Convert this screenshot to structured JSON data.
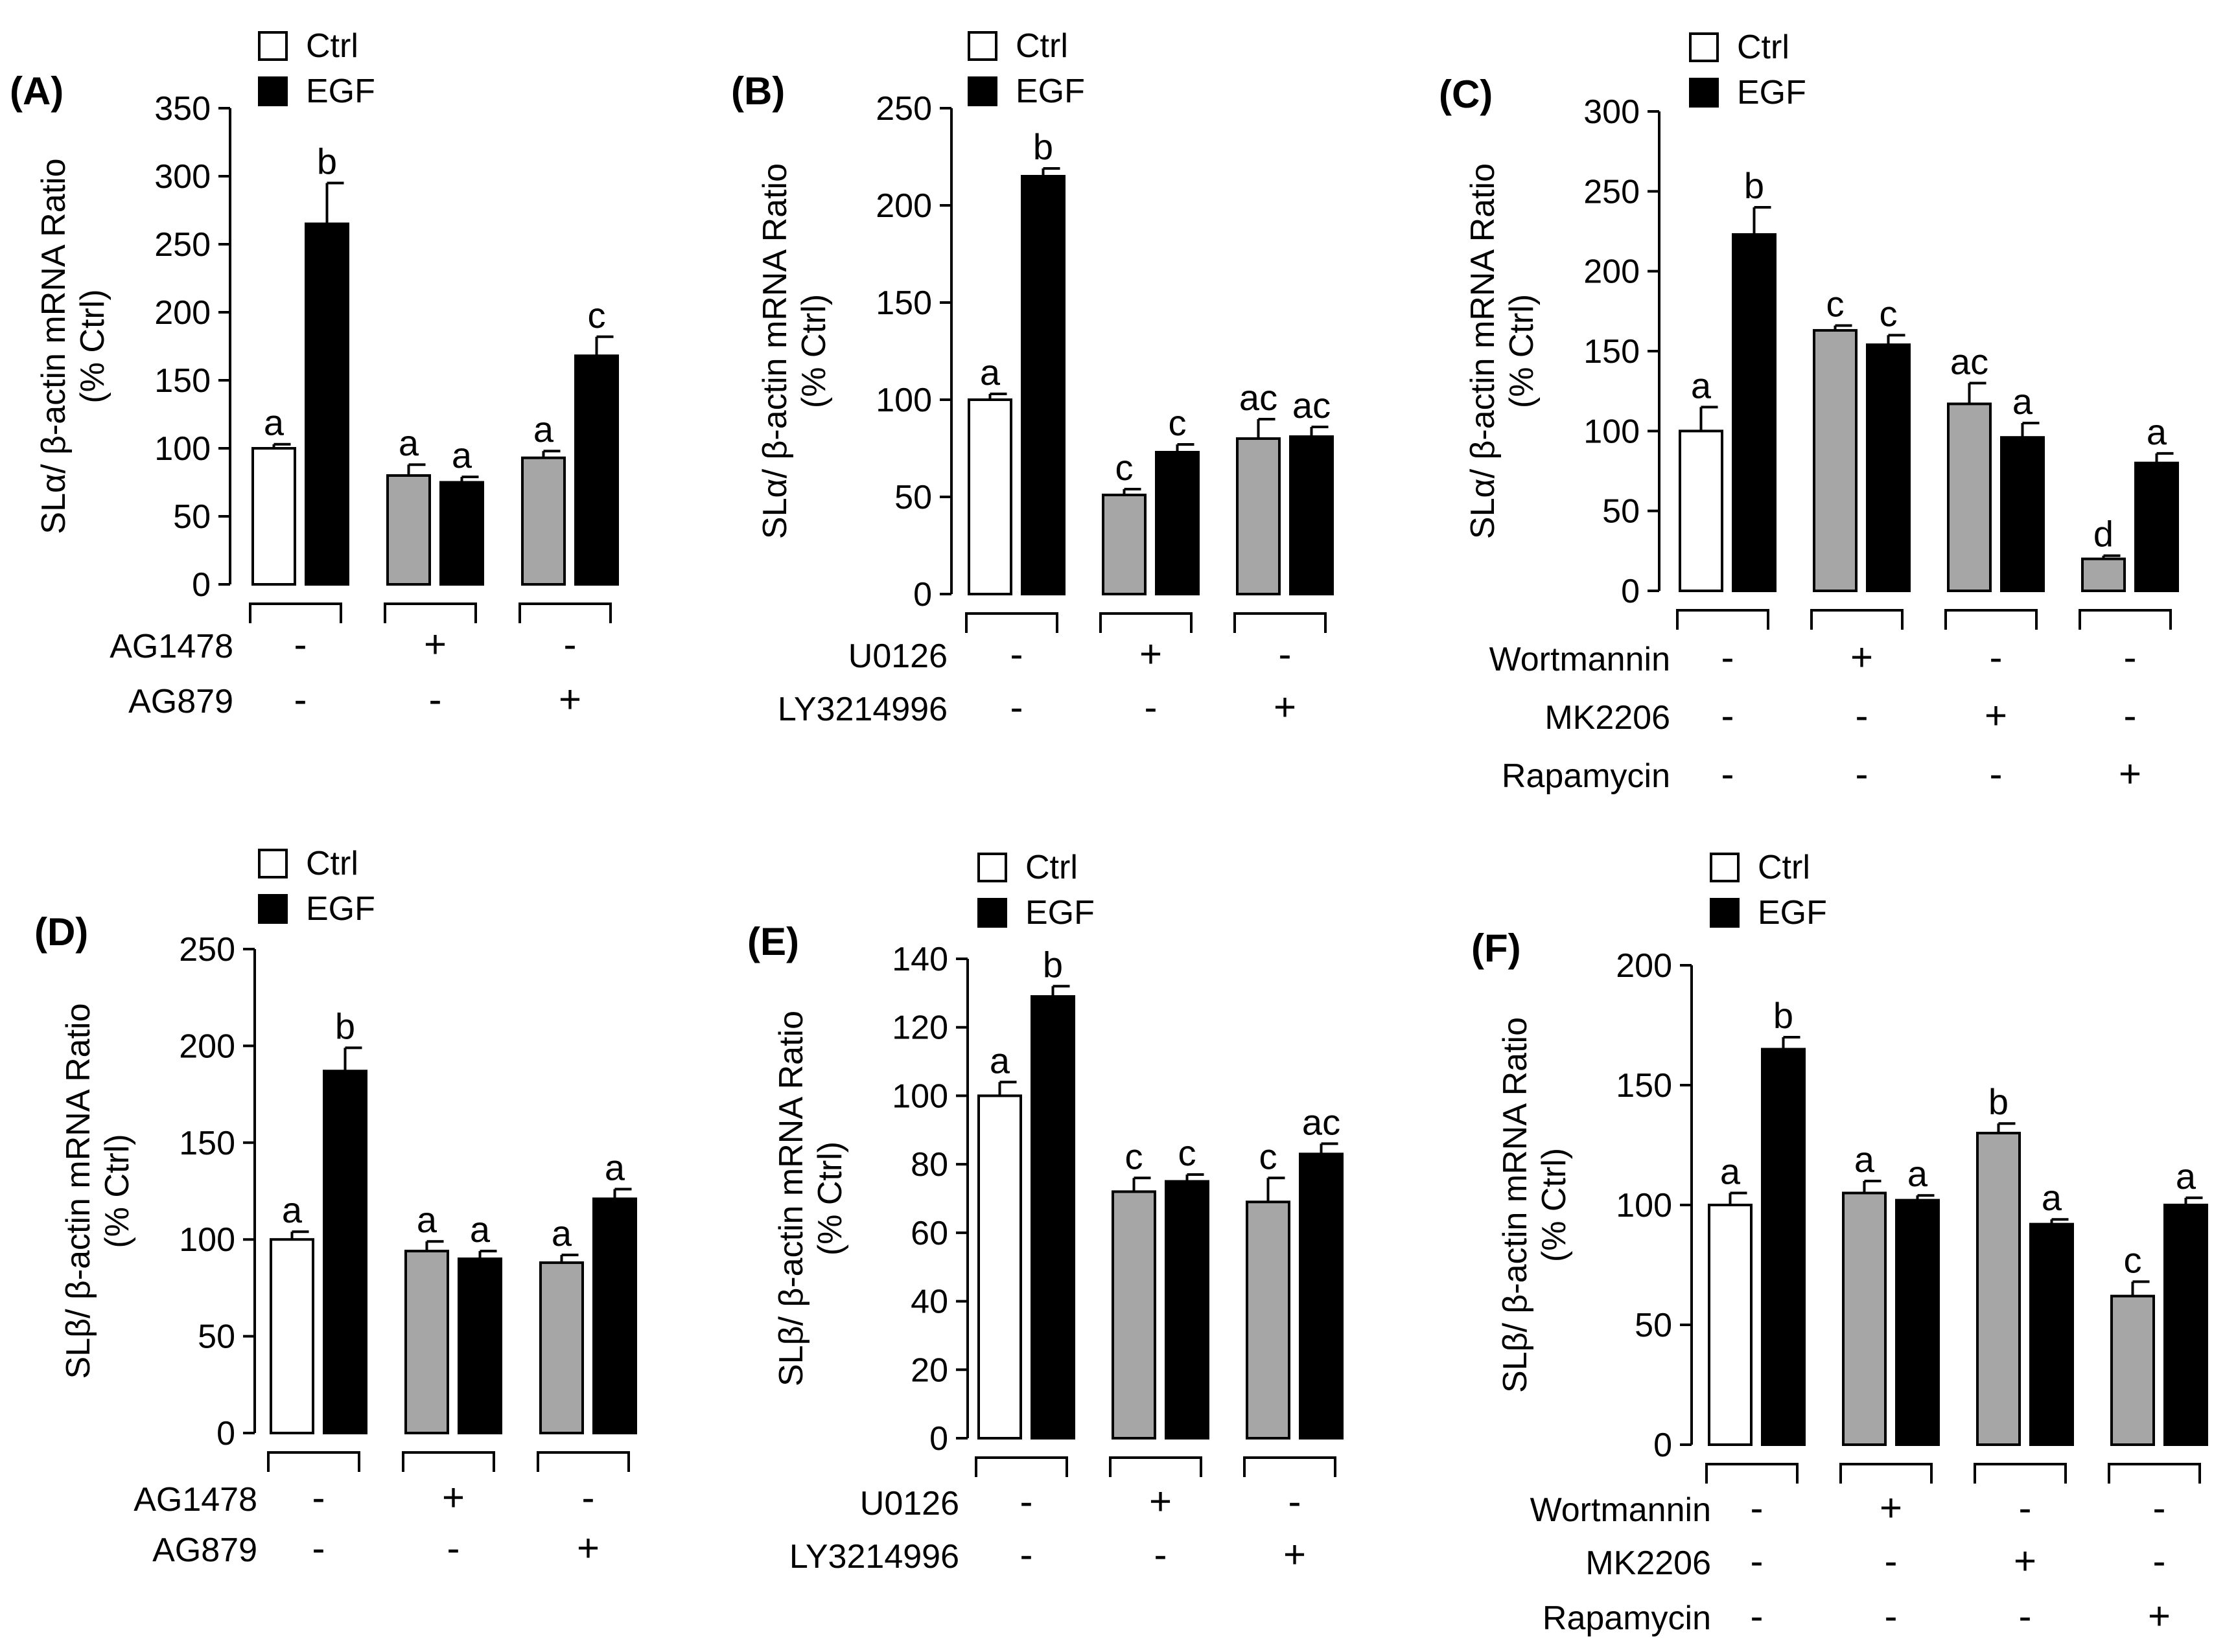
{
  "colors": {
    "ctrl_fill": "#ffffff",
    "inhibitor_ctrl_fill": "#a6a6a6",
    "egf_fill": "#000000",
    "axis": "#000000"
  },
  "chart_data": [
    {
      "panel": "(A)",
      "type": "bar",
      "ylabel": "SLα/ β-actin mRNA Ratio",
      "ylabel2": "(% Ctrl)",
      "ylim": [
        0,
        350
      ],
      "yticks": [
        0,
        50,
        100,
        150,
        200,
        250,
        300,
        350
      ],
      "legend": [
        "Ctrl",
        "EGF"
      ],
      "groups": [
        {
          "ctrl": 100,
          "ctrl_err": 3,
          "egf": 265,
          "egf_err": 30,
          "ctrl_label": "a",
          "egf_label": "b",
          "shaded": false
        },
        {
          "ctrl": 80,
          "ctrl_err": 8,
          "egf": 75,
          "egf_err": 4,
          "ctrl_label": "a",
          "egf_label": "a",
          "shaded": true
        },
        {
          "ctrl": 93,
          "ctrl_err": 5,
          "egf": 168,
          "egf_err": 14,
          "ctrl_label": "a",
          "egf_label": "c",
          "shaded": true
        }
      ],
      "treatments": [
        {
          "name": "AG1478",
          "values": [
            "-",
            "+",
            "-"
          ]
        },
        {
          "name": "AG879",
          "values": [
            "-",
            "-",
            "+"
          ]
        }
      ]
    },
    {
      "panel": "(B)",
      "type": "bar",
      "ylabel": "SLα/ β-actin mRNA Ratio",
      "ylabel2": "(% Ctrl)",
      "ylim": [
        0,
        250
      ],
      "yticks": [
        0,
        50,
        100,
        150,
        200,
        250
      ],
      "legend": [
        "Ctrl",
        "EGF"
      ],
      "groups": [
        {
          "ctrl": 100,
          "ctrl_err": 3,
          "egf": 215,
          "egf_err": 4,
          "ctrl_label": "a",
          "egf_label": "b",
          "shaded": false
        },
        {
          "ctrl": 51,
          "ctrl_err": 3,
          "egf": 73,
          "egf_err": 4,
          "ctrl_label": "c",
          "egf_label": "c",
          "shaded": true
        },
        {
          "ctrl": 80,
          "ctrl_err": 10,
          "egf": 81,
          "egf_err": 5,
          "ctrl_label": "ac",
          "egf_label": "ac",
          "shaded": true
        }
      ],
      "treatments": [
        {
          "name": "U0126",
          "values": [
            "-",
            "+",
            "-"
          ]
        },
        {
          "name": "LY3214996",
          "values": [
            "-",
            "-",
            "+"
          ]
        }
      ]
    },
    {
      "panel": "(C)",
      "type": "bar",
      "ylabel": "SLα/ β-actin mRNA Ratio",
      "ylabel2": "(% Ctrl)",
      "ylim": [
        0,
        300
      ],
      "yticks": [
        0,
        50,
        100,
        150,
        200,
        250,
        300
      ],
      "legend": [
        "Ctrl",
        "EGF"
      ],
      "groups": [
        {
          "ctrl": 100,
          "ctrl_err": 15,
          "egf": 223,
          "egf_err": 17,
          "ctrl_label": "a",
          "egf_label": "b",
          "shaded": false
        },
        {
          "ctrl": 163,
          "ctrl_err": 3,
          "egf": 154,
          "egf_err": 6,
          "ctrl_label": "c",
          "egf_label": "c",
          "shaded": true
        },
        {
          "ctrl": 117,
          "ctrl_err": 13,
          "egf": 96,
          "egf_err": 9,
          "ctrl_label": "ac",
          "egf_label": "a",
          "shaded": true
        },
        {
          "ctrl": 20,
          "ctrl_err": 2,
          "egf": 80,
          "egf_err": 6,
          "ctrl_label": "d",
          "egf_label": "a",
          "shaded": true
        }
      ],
      "treatments": [
        {
          "name": "Wortmannin",
          "values": [
            "-",
            "+",
            "-",
            "-"
          ]
        },
        {
          "name": "MK2206",
          "values": [
            "-",
            "-",
            "+",
            "-"
          ]
        },
        {
          "name": "Rapamycin",
          "values": [
            "-",
            "-",
            "-",
            "+"
          ]
        }
      ]
    },
    {
      "panel": "(D)",
      "type": "bar",
      "ylabel": "SLβ/ β-actin mRNA Ratio",
      "ylabel2": "(% Ctrl)",
      "ylim": [
        0,
        250
      ],
      "yticks": [
        0,
        50,
        100,
        150,
        200,
        250
      ],
      "legend": [
        "Ctrl",
        "EGF"
      ],
      "groups": [
        {
          "ctrl": 100,
          "ctrl_err": 4,
          "egf": 187,
          "egf_err": 12,
          "ctrl_label": "a",
          "egf_label": "b",
          "shaded": false
        },
        {
          "ctrl": 94,
          "ctrl_err": 5,
          "egf": 90,
          "egf_err": 4,
          "ctrl_label": "a",
          "egf_label": "a",
          "shaded": true
        },
        {
          "ctrl": 88,
          "ctrl_err": 4,
          "egf": 121,
          "egf_err": 5,
          "ctrl_label": "a",
          "egf_label": "a",
          "shaded": true
        }
      ],
      "treatments": [
        {
          "name": "AG1478",
          "values": [
            "-",
            "+",
            "-"
          ]
        },
        {
          "name": "AG879",
          "values": [
            "-",
            "-",
            "+"
          ]
        }
      ]
    },
    {
      "panel": "(E)",
      "type": "bar",
      "ylabel": "SLβ/ β-actin mRNA Ratio",
      "ylabel2": "(% Ctrl)",
      "ylim": [
        0,
        140
      ],
      "yticks": [
        0,
        20,
        40,
        60,
        80,
        100,
        120,
        140
      ],
      "legend": [
        "Ctrl",
        "EGF"
      ],
      "groups": [
        {
          "ctrl": 100,
          "ctrl_err": 4,
          "egf": 129,
          "egf_err": 3,
          "ctrl_label": "a",
          "egf_label": "b",
          "shaded": false
        },
        {
          "ctrl": 72,
          "ctrl_err": 4,
          "egf": 75,
          "egf_err": 2,
          "ctrl_label": "c",
          "egf_label": "c",
          "shaded": true
        },
        {
          "ctrl": 69,
          "ctrl_err": 7,
          "egf": 83,
          "egf_err": 3,
          "ctrl_label": "c",
          "egf_label": "ac",
          "shaded": true
        }
      ],
      "treatments": [
        {
          "name": "U0126",
          "values": [
            "-",
            "+",
            "-"
          ]
        },
        {
          "name": "LY3214996",
          "values": [
            "-",
            "-",
            "+"
          ]
        }
      ]
    },
    {
      "panel": "(F)",
      "type": "bar",
      "ylabel": "SLβ/ β-actin mRNA Ratio",
      "ylabel2": "(% Ctrl)",
      "ylim": [
        0,
        200
      ],
      "yticks": [
        0,
        50,
        100,
        150,
        200
      ],
      "legend": [
        "Ctrl",
        "EGF"
      ],
      "groups": [
        {
          "ctrl": 100,
          "ctrl_err": 5,
          "egf": 165,
          "egf_err": 5,
          "ctrl_label": "a",
          "egf_label": "b",
          "shaded": false
        },
        {
          "ctrl": 105,
          "ctrl_err": 5,
          "egf": 102,
          "egf_err": 2,
          "ctrl_label": "a",
          "egf_label": "a",
          "shaded": true
        },
        {
          "ctrl": 130,
          "ctrl_err": 4,
          "egf": 92,
          "egf_err": 2,
          "ctrl_label": "b",
          "egf_label": "a",
          "shaded": true
        },
        {
          "ctrl": 62,
          "ctrl_err": 6,
          "egf": 100,
          "egf_err": 3,
          "ctrl_label": "c",
          "egf_label": "a",
          "shaded": true
        }
      ],
      "treatments": [
        {
          "name": "Wortmannin",
          "values": [
            "-",
            "+",
            "-",
            "-"
          ]
        },
        {
          "name": "MK2206",
          "values": [
            "-",
            "-",
            "+",
            "-"
          ]
        },
        {
          "name": "Rapamycin",
          "values": [
            "-",
            "-",
            "-",
            "+"
          ]
        }
      ]
    }
  ]
}
